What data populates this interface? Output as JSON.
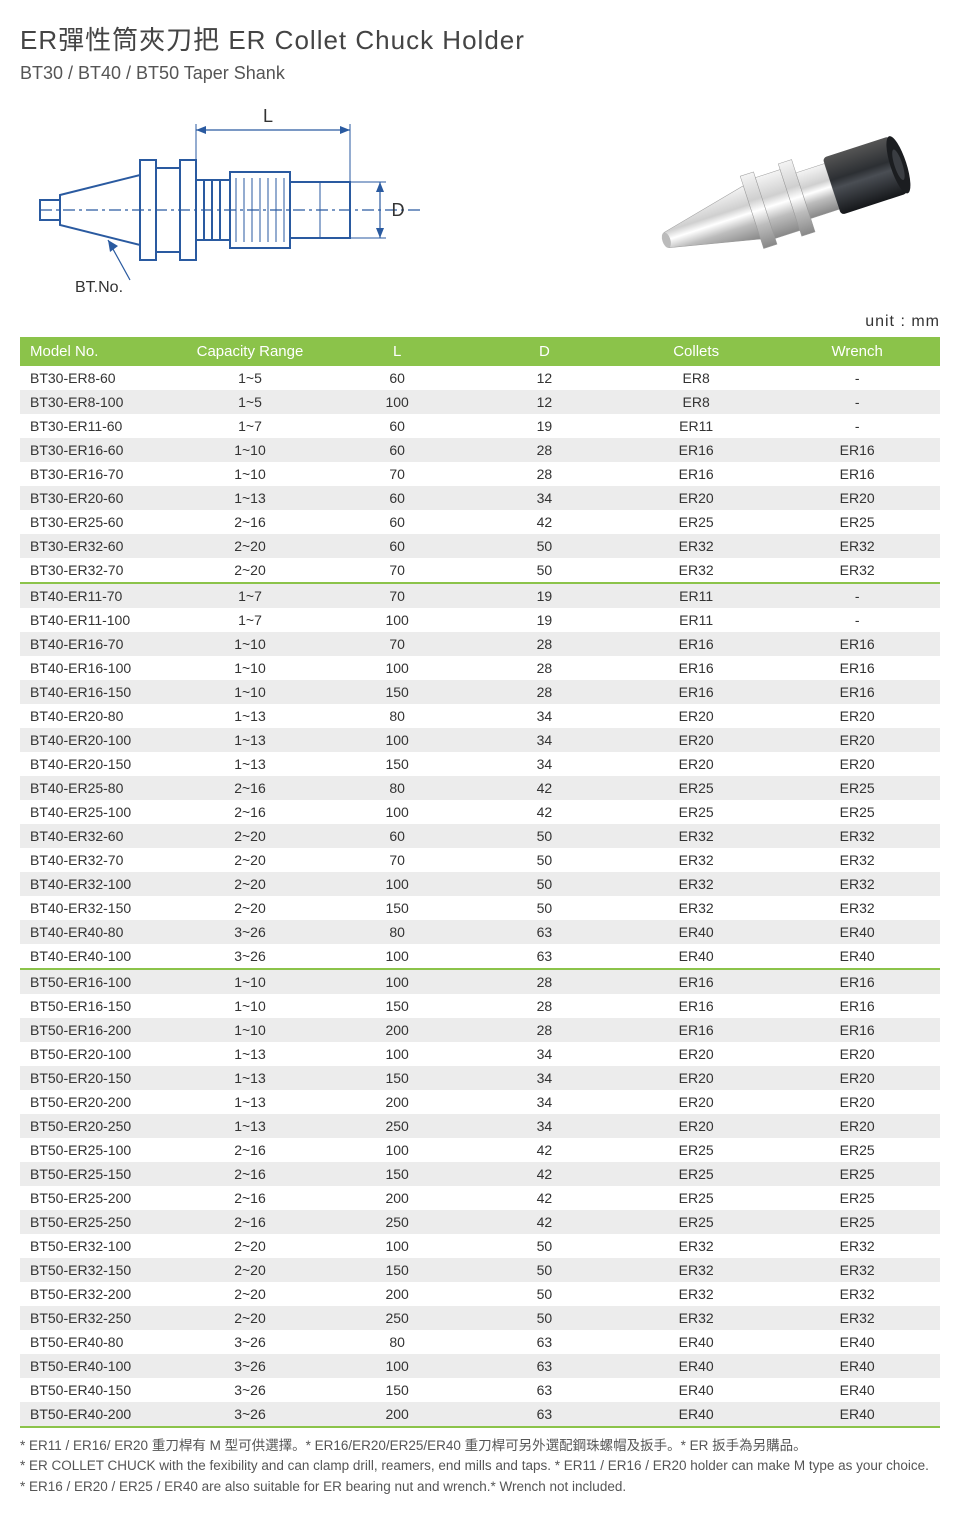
{
  "title": "ER彈性筒夾刀把  ER Collet Chuck Holder",
  "subtitle": "BT30 / BT40 / BT50 Taper Shank",
  "unit_label": "unit : mm",
  "diagram": {
    "L_label": "L",
    "D_label": "D",
    "bt_label": "BT.No.",
    "line_color": "#2a5aa0",
    "fill_color": "#ffffff",
    "dim_color": "#2a5aa0"
  },
  "table": {
    "header_bg": "#8bc34a",
    "header_fg": "#ffffff",
    "row_odd_bg": "#ffffff",
    "row_even_bg": "#ececec",
    "group_divider_color": "#8bc34a",
    "columns": [
      "Model No.",
      "Capacity Range",
      "L",
      "D",
      "Collets",
      "Wrench"
    ],
    "col_widths": [
      "17%",
      "16%",
      "16%",
      "16%",
      "17%",
      "18%"
    ],
    "groups": [
      {
        "rows": [
          [
            "BT30-ER8-60",
            "1~5",
            "60",
            "12",
            "ER8",
            "-"
          ],
          [
            "BT30-ER8-100",
            "1~5",
            "100",
            "12",
            "ER8",
            "-"
          ],
          [
            "BT30-ER11-60",
            "1~7",
            "60",
            "19",
            "ER11",
            "-"
          ],
          [
            "BT30-ER16-60",
            "1~10",
            "60",
            "28",
            "ER16",
            "ER16"
          ],
          [
            "BT30-ER16-70",
            "1~10",
            "70",
            "28",
            "ER16",
            "ER16"
          ],
          [
            "BT30-ER20-60",
            "1~13",
            "60",
            "34",
            "ER20",
            "ER20"
          ],
          [
            "BT30-ER25-60",
            "2~16",
            "60",
            "42",
            "ER25",
            "ER25"
          ],
          [
            "BT30-ER32-60",
            "2~20",
            "60",
            "50",
            "ER32",
            "ER32"
          ],
          [
            "BT30-ER32-70",
            "2~20",
            "70",
            "50",
            "ER32",
            "ER32"
          ]
        ]
      },
      {
        "rows": [
          [
            "BT40-ER11-70",
            "1~7",
            "70",
            "19",
            "ER11",
            "-"
          ],
          [
            "BT40-ER11-100",
            "1~7",
            "100",
            "19",
            "ER11",
            "-"
          ],
          [
            "BT40-ER16-70",
            "1~10",
            "70",
            "28",
            "ER16",
            "ER16"
          ],
          [
            "BT40-ER16-100",
            "1~10",
            "100",
            "28",
            "ER16",
            "ER16"
          ],
          [
            "BT40-ER16-150",
            "1~10",
            "150",
            "28",
            "ER16",
            "ER16"
          ],
          [
            "BT40-ER20-80",
            "1~13",
            "80",
            "34",
            "ER20",
            "ER20"
          ],
          [
            "BT40-ER20-100",
            "1~13",
            "100",
            "34",
            "ER20",
            "ER20"
          ],
          [
            "BT40-ER20-150",
            "1~13",
            "150",
            "34",
            "ER20",
            "ER20"
          ],
          [
            "BT40-ER25-80",
            "2~16",
            "80",
            "42",
            "ER25",
            "ER25"
          ],
          [
            "BT40-ER25-100",
            "2~16",
            "100",
            "42",
            "ER25",
            "ER25"
          ],
          [
            "BT40-ER32-60",
            "2~20",
            "60",
            "50",
            "ER32",
            "ER32"
          ],
          [
            "BT40-ER32-70",
            "2~20",
            "70",
            "50",
            "ER32",
            "ER32"
          ],
          [
            "BT40-ER32-100",
            "2~20",
            "100",
            "50",
            "ER32",
            "ER32"
          ],
          [
            "BT40-ER32-150",
            "2~20",
            "150",
            "50",
            "ER32",
            "ER32"
          ],
          [
            "BT40-ER40-80",
            "3~26",
            "80",
            "63",
            "ER40",
            "ER40"
          ],
          [
            "BT40-ER40-100",
            "3~26",
            "100",
            "63",
            "ER40",
            "ER40"
          ]
        ]
      },
      {
        "rows": [
          [
            "BT50-ER16-100",
            "1~10",
            "100",
            "28",
            "ER16",
            "ER16"
          ],
          [
            "BT50-ER16-150",
            "1~10",
            "150",
            "28",
            "ER16",
            "ER16"
          ],
          [
            "BT50-ER16-200",
            "1~10",
            "200",
            "28",
            "ER16",
            "ER16"
          ],
          [
            "BT50-ER20-100",
            "1~13",
            "100",
            "34",
            "ER20",
            "ER20"
          ],
          [
            "BT50-ER20-150",
            "1~13",
            "150",
            "34",
            "ER20",
            "ER20"
          ],
          [
            "BT50-ER20-200",
            "1~13",
            "200",
            "34",
            "ER20",
            "ER20"
          ],
          [
            "BT50-ER20-250",
            "1~13",
            "250",
            "34",
            "ER20",
            "ER20"
          ],
          [
            "BT50-ER25-100",
            "2~16",
            "100",
            "42",
            "ER25",
            "ER25"
          ],
          [
            "BT50-ER25-150",
            "2~16",
            "150",
            "42",
            "ER25",
            "ER25"
          ],
          [
            "BT50-ER25-200",
            "2~16",
            "200",
            "42",
            "ER25",
            "ER25"
          ],
          [
            "BT50-ER25-250",
            "2~16",
            "250",
            "42",
            "ER25",
            "ER25"
          ],
          [
            "BT50-ER32-100",
            "2~20",
            "100",
            "50",
            "ER32",
            "ER32"
          ],
          [
            "BT50-ER32-150",
            "2~20",
            "150",
            "50",
            "ER32",
            "ER32"
          ],
          [
            "BT50-ER32-200",
            "2~20",
            "200",
            "50",
            "ER32",
            "ER32"
          ],
          [
            "BT50-ER32-250",
            "2~20",
            "250",
            "50",
            "ER32",
            "ER32"
          ],
          [
            "BT50-ER40-80",
            "3~26",
            "80",
            "63",
            "ER40",
            "ER40"
          ],
          [
            "BT50-ER40-100",
            "3~26",
            "100",
            "63",
            "ER40",
            "ER40"
          ],
          [
            "BT50-ER40-150",
            "3~26",
            "150",
            "63",
            "ER40",
            "ER40"
          ],
          [
            "BT50-ER40-200",
            "3~26",
            "200",
            "63",
            "ER40",
            "ER40"
          ]
        ]
      }
    ]
  },
  "footnotes": [
    "* ER11 / ER16/ ER20 重刀桿有 M 型可供選擇。* ER16/ER20/ER25/ER40 重刀桿可另外選配鋼珠螺帽及扳手。* ER 扳手為另購品。",
    "* ER COLLET CHUCK with the fexibility and can clamp drill, reamers, end mills and taps.  * ER11 / ER16 / ER20 holder can make M type as your choice.",
    "* ER16 / ER20 / ER25 / ER40 are also suitable for ER bearing nut and wrench.* Wrench not included."
  ]
}
